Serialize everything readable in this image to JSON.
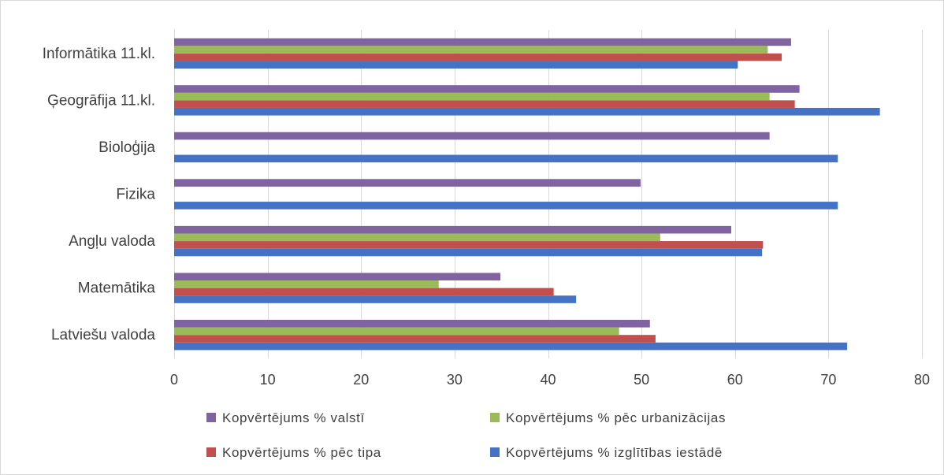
{
  "chart_data": {
    "type": "bar",
    "orientation": "horizontal",
    "categories": [
      "Latviešu valoda",
      "Matemātika",
      "Angļu valoda",
      "Fizika",
      "Bioloģija",
      "Ģeogrāfija 11.kl.",
      "Informātika 11.kl."
    ],
    "series": [
      {
        "name": "Kopvērtējums % izglītības iestādē",
        "color": "#4472c4",
        "values": [
          72,
          43,
          62.9,
          71,
          71,
          75.5,
          60.3
        ]
      },
      {
        "name": "Kopvērtējums % pēc tipa",
        "color": "#c0504d",
        "values": [
          51.5,
          40.6,
          63,
          null,
          null,
          66.4,
          65
        ]
      },
      {
        "name": "Kopvērtējums % pēc urbanizācijas",
        "color": "#9bbb59",
        "values": [
          47.6,
          28.3,
          52,
          null,
          null,
          63.7,
          63.5
        ]
      },
      {
        "name": "Kopvērtējums % valstī",
        "color": "#8064a2",
        "values": [
          50.9,
          34.9,
          59.6,
          49.9,
          63.7,
          66.9,
          66
        ]
      }
    ],
    "xlim": [
      0,
      80
    ],
    "xticks": [
      0,
      10,
      20,
      30,
      40,
      50,
      60,
      70,
      80
    ],
    "grid": true,
    "legend_position": "bottom",
    "legend_order": [
      3,
      2,
      1,
      0
    ]
  }
}
